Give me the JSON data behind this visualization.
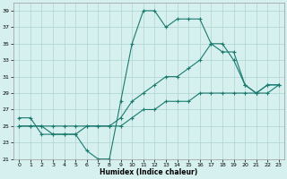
{
  "xlabel": "Humidex (Indice chaleur)",
  "bg_color": "#d6f0ef",
  "grid_color": "#aed4d0",
  "line_color": "#1a7a6e",
  "xlim": [
    -0.5,
    23.5
  ],
  "ylim": [
    21,
    40
  ],
  "xticks": [
    0,
    1,
    2,
    3,
    4,
    5,
    6,
    7,
    8,
    9,
    10,
    11,
    12,
    13,
    14,
    15,
    16,
    17,
    18,
    19,
    20,
    21,
    22,
    23
  ],
  "yticks": [
    21,
    23,
    25,
    27,
    29,
    31,
    33,
    35,
    37,
    39
  ],
  "series1_x": [
    0,
    1,
    2,
    3,
    4,
    5,
    6,
    7,
    8,
    9,
    10,
    11,
    12,
    13,
    14,
    15,
    16,
    17,
    18,
    19,
    20,
    21,
    22,
    23
  ],
  "series1_y": [
    26,
    26,
    24,
    24,
    24,
    24,
    22,
    21,
    21,
    28,
    35,
    39,
    39,
    37,
    38,
    38,
    38,
    35,
    35,
    33,
    30,
    29,
    30,
    30
  ],
  "series2_x": [
    0,
    1,
    2,
    3,
    4,
    5,
    6,
    7,
    8,
    9,
    10,
    11,
    12,
    13,
    14,
    15,
    16,
    17,
    18,
    19,
    20,
    21,
    22,
    23
  ],
  "series2_y": [
    25,
    25,
    25,
    24,
    24,
    24,
    25,
    25,
    25,
    26,
    28,
    29,
    30,
    31,
    31,
    32,
    33,
    35,
    34,
    34,
    30,
    29,
    30,
    30
  ],
  "series3_x": [
    0,
    1,
    2,
    3,
    4,
    5,
    6,
    7,
    8,
    9,
    10,
    11,
    12,
    13,
    14,
    15,
    16,
    17,
    18,
    19,
    20,
    21,
    22,
    23
  ],
  "series3_y": [
    25,
    25,
    25,
    25,
    25,
    25,
    25,
    25,
    25,
    25,
    26,
    27,
    27,
    28,
    28,
    28,
    29,
    29,
    29,
    29,
    29,
    29,
    29,
    30
  ]
}
